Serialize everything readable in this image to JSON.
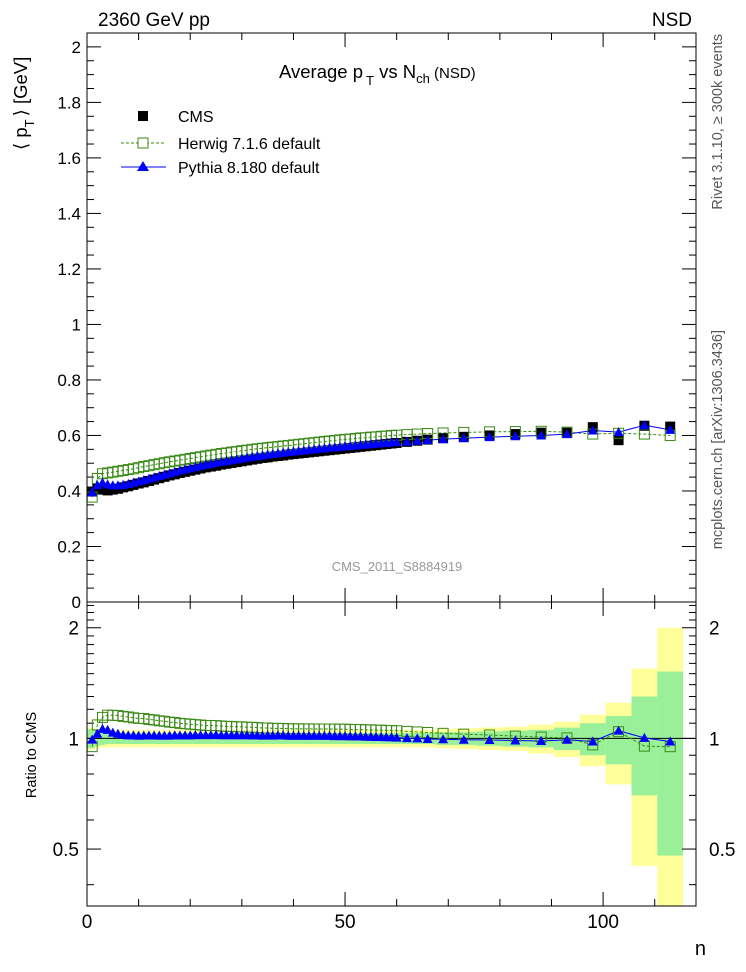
{
  "header": {
    "left_label": "2360 GeV pp",
    "right_label": "NSD",
    "watermark": "CMS_2011_S8884919",
    "side_label_top": "Rivet 3.1.10, ≥ 300k events",
    "side_label_bottom": "mcplots.cern.ch [arXiv:1306.3436]"
  },
  "colors": {
    "cms": "#000000",
    "herwig": "#3a8a16",
    "pythia": "#0000ff",
    "band_inner": "#99f099",
    "band_outer": "#ffff99"
  },
  "chart_data": [
    {
      "type": "scatter",
      "title": "Average p_T vs N_ch (NSD)",
      "title_parts": {
        "avg": "Average p",
        "sub1": "T",
        "vs": " vs N",
        "sub2": "ch",
        "tail": " (NSD)"
      },
      "ylabel_parts": {
        "open": "⟨ p",
        "sub": "T",
        "close": "⟩ [GeV]"
      },
      "xlabel": "n",
      "xlim": [
        0,
        118
      ],
      "ylim": [
        0,
        2.05
      ],
      "y_ticks": [
        "0",
        "0.2",
        "0.4",
        "0.6",
        "0.8",
        "1",
        "1.2",
        "1.4",
        "1.6",
        "1.8",
        "2"
      ],
      "legend_position": "top-left",
      "legend": [
        "CMS",
        "Herwig 7.1.6 default",
        "Pythia 8.180 default"
      ],
      "series": [
        {
          "name": "CMS",
          "x": [
            1,
            2,
            3,
            4,
            5,
            6,
            7,
            8,
            9,
            10,
            11,
            12,
            13,
            14,
            15,
            16,
            17,
            18,
            19,
            20,
            21,
            22,
            23,
            24,
            25,
            26,
            27,
            28,
            29,
            30,
            31,
            32,
            33,
            34,
            35,
            36,
            37,
            38,
            39,
            40,
            41,
            42,
            43,
            44,
            45,
            46,
            47,
            48,
            49,
            50,
            51,
            52,
            53,
            54,
            55,
            56,
            57,
            58,
            59,
            60,
            62,
            64,
            66,
            69,
            73,
            78,
            83,
            88,
            93,
            98,
            103,
            108,
            113
          ],
          "y": [
            0.398,
            0.409,
            0.405,
            0.402,
            0.405,
            0.408,
            0.413,
            0.417,
            0.422,
            0.427,
            0.431,
            0.436,
            0.441,
            0.446,
            0.451,
            0.456,
            0.46,
            0.465,
            0.469,
            0.473,
            0.477,
            0.481,
            0.485,
            0.488,
            0.491,
            0.495,
            0.498,
            0.501,
            0.504,
            0.507,
            0.51,
            0.513,
            0.516,
            0.519,
            0.521,
            0.524,
            0.526,
            0.528,
            0.531,
            0.533,
            0.535,
            0.537,
            0.539,
            0.541,
            0.543,
            0.545,
            0.547,
            0.549,
            0.551,
            0.553,
            0.555,
            0.557,
            0.559,
            0.561,
            0.563,
            0.565,
            0.567,
            0.569,
            0.571,
            0.573,
            0.577,
            0.581,
            0.585,
            0.59,
            0.595,
            0.6,
            0.605,
            0.61,
            0.61,
            0.63,
            0.583,
            0.635,
            0.632
          ]
        },
        {
          "name": "Herwig 7.1.6 default",
          "x": [
            1,
            2,
            3,
            4,
            5,
            6,
            7,
            8,
            9,
            10,
            11,
            12,
            13,
            14,
            15,
            16,
            17,
            18,
            19,
            20,
            21,
            22,
            23,
            24,
            25,
            26,
            27,
            28,
            29,
            30,
            31,
            32,
            33,
            34,
            35,
            36,
            37,
            38,
            39,
            40,
            41,
            42,
            43,
            44,
            45,
            46,
            47,
            48,
            49,
            50,
            51,
            52,
            53,
            54,
            55,
            56,
            57,
            58,
            59,
            60,
            62,
            64,
            66,
            69,
            73,
            78,
            83,
            88,
            93,
            98,
            103,
            108,
            113
          ],
          "y": [
            0.378,
            0.445,
            0.462,
            0.465,
            0.468,
            0.471,
            0.474,
            0.477,
            0.48,
            0.484,
            0.488,
            0.491,
            0.495,
            0.498,
            0.502,
            0.505,
            0.508,
            0.511,
            0.514,
            0.517,
            0.52,
            0.523,
            0.526,
            0.529,
            0.532,
            0.535,
            0.537,
            0.54,
            0.542,
            0.545,
            0.547,
            0.55,
            0.552,
            0.554,
            0.556,
            0.558,
            0.56,
            0.562,
            0.564,
            0.566,
            0.568,
            0.57,
            0.572,
            0.574,
            0.576,
            0.578,
            0.58,
            0.582,
            0.584,
            0.586,
            0.587,
            0.589,
            0.591,
            0.592,
            0.594,
            0.595,
            0.597,
            0.598,
            0.6,
            0.601,
            0.603,
            0.605,
            0.607,
            0.609,
            0.611,
            0.613,
            0.614,
            0.615,
            0.612,
            0.605,
            0.608,
            0.605,
            0.6
          ]
        },
        {
          "name": "Pythia 8.180 default",
          "x": [
            1,
            2,
            3,
            4,
            5,
            6,
            7,
            8,
            9,
            10,
            11,
            12,
            13,
            14,
            15,
            16,
            17,
            18,
            19,
            20,
            21,
            22,
            23,
            24,
            25,
            26,
            27,
            28,
            29,
            30,
            31,
            32,
            33,
            34,
            35,
            36,
            37,
            38,
            39,
            40,
            41,
            42,
            43,
            44,
            45,
            46,
            47,
            48,
            49,
            50,
            51,
            52,
            53,
            54,
            55,
            56,
            57,
            58,
            59,
            60,
            62,
            64,
            66,
            69,
            73,
            78,
            83,
            88,
            93,
            98,
            103,
            108,
            113
          ],
          "y": [
            0.395,
            0.421,
            0.43,
            0.424,
            0.42,
            0.42,
            0.422,
            0.425,
            0.43,
            0.434,
            0.439,
            0.444,
            0.449,
            0.454,
            0.459,
            0.464,
            0.469,
            0.474,
            0.478,
            0.482,
            0.487,
            0.491,
            0.495,
            0.498,
            0.502,
            0.505,
            0.508,
            0.511,
            0.514,
            0.517,
            0.52,
            0.523,
            0.526,
            0.528,
            0.531,
            0.533,
            0.536,
            0.538,
            0.54,
            0.542,
            0.544,
            0.546,
            0.548,
            0.55,
            0.552,
            0.554,
            0.556,
            0.557,
            0.559,
            0.561,
            0.562,
            0.564,
            0.566,
            0.567,
            0.569,
            0.57,
            0.572,
            0.573,
            0.575,
            0.576,
            0.578,
            0.581,
            0.583,
            0.587,
            0.59,
            0.594,
            0.597,
            0.6,
            0.605,
            0.618,
            0.612,
            0.637,
            0.62
          ]
        }
      ]
    },
    {
      "type": "scatter",
      "ylabel": "Ratio to CMS",
      "xlabel": "n",
      "xlim": [
        0,
        118
      ],
      "ylim": [
        0.35,
        2.35
      ],
      "y_scale": "log",
      "y_ticks": [
        "0.5",
        "1",
        "2"
      ],
      "x_ticks": [
        "0",
        "50",
        "100"
      ],
      "uncertainty_bands": {
        "x_edges": [
          0,
          1.5,
          2.5,
          3.5,
          4.5,
          5.5,
          6.5,
          7.5,
          8.5,
          9.5,
          10.5,
          11.5,
          12.5,
          13.5,
          14.5,
          15.5,
          16.5,
          17.5,
          18.5,
          19.5,
          20.5,
          21.5,
          22.5,
          23.5,
          24.5,
          25.5,
          26.5,
          27.5,
          28.5,
          29.5,
          30.5,
          31.5,
          32.5,
          33.5,
          34.5,
          35.5,
          36.5,
          37.5,
          38.5,
          39.5,
          40.5,
          41.5,
          42.5,
          43.5,
          44.5,
          45.5,
          46.5,
          47.5,
          48.5,
          49.5,
          50.5,
          51.5,
          52.5,
          53.5,
          54.5,
          55.5,
          56.5,
          57.5,
          58.5,
          59.5,
          61,
          63,
          65,
          67.5,
          71,
          75.5,
          80.5,
          85.5,
          90.5,
          95.5,
          100.5,
          105.5,
          110.5,
          115.5
        ],
        "inner_half_width": [
          0.06,
          0.045,
          0.04,
          0.035,
          0.035,
          0.035,
          0.035,
          0.035,
          0.035,
          0.035,
          0.035,
          0.035,
          0.035,
          0.035,
          0.035,
          0.035,
          0.035,
          0.035,
          0.035,
          0.035,
          0.035,
          0.035,
          0.035,
          0.035,
          0.035,
          0.035,
          0.035,
          0.035,
          0.035,
          0.035,
          0.035,
          0.035,
          0.035,
          0.035,
          0.035,
          0.035,
          0.035,
          0.035,
          0.035,
          0.035,
          0.035,
          0.035,
          0.035,
          0.035,
          0.035,
          0.035,
          0.035,
          0.035,
          0.035,
          0.035,
          0.035,
          0.035,
          0.035,
          0.035,
          0.035,
          0.035,
          0.035,
          0.035,
          0.035,
          0.035,
          0.035,
          0.035,
          0.035,
          0.04,
          0.04,
          0.045,
          0.05,
          0.055,
          0.07,
          0.1,
          0.15,
          0.3,
          0.52
        ],
        "outer_half_width": [
          0.07,
          0.06,
          0.055,
          0.055,
          0.055,
          0.055,
          0.055,
          0.055,
          0.055,
          0.055,
          0.055,
          0.055,
          0.055,
          0.055,
          0.055,
          0.055,
          0.055,
          0.055,
          0.055,
          0.055,
          0.055,
          0.055,
          0.055,
          0.055,
          0.055,
          0.055,
          0.055,
          0.055,
          0.055,
          0.055,
          0.055,
          0.055,
          0.055,
          0.055,
          0.055,
          0.055,
          0.055,
          0.055,
          0.055,
          0.055,
          0.055,
          0.055,
          0.055,
          0.055,
          0.055,
          0.055,
          0.055,
          0.055,
          0.055,
          0.055,
          0.055,
          0.055,
          0.055,
          0.055,
          0.055,
          0.055,
          0.055,
          0.055,
          0.055,
          0.055,
          0.055,
          0.055,
          0.055,
          0.06,
          0.065,
          0.07,
          0.075,
          0.09,
          0.11,
          0.16,
          0.25,
          0.55,
          1.0
        ]
      }
    }
  ]
}
